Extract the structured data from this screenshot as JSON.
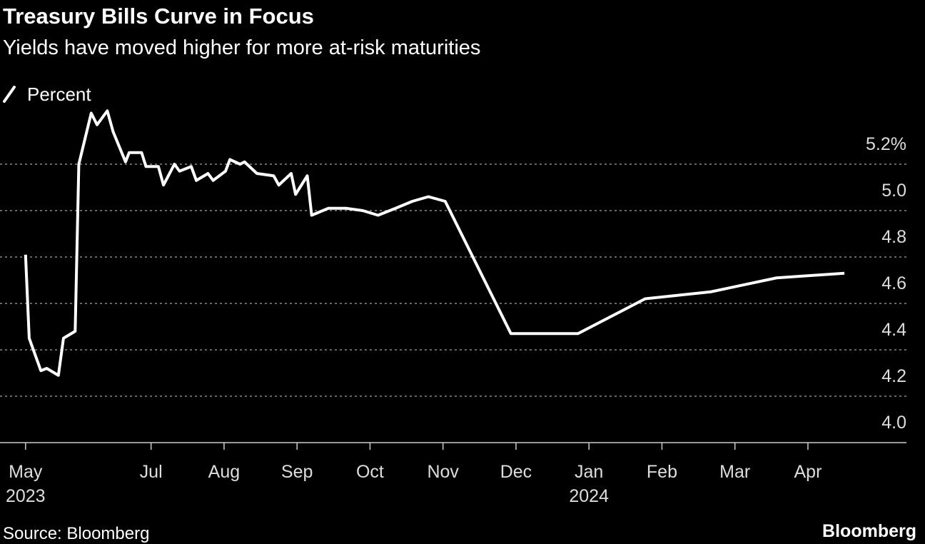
{
  "chart_data": {
    "type": "line",
    "title": "Treasury Bills Curve in Focus",
    "subtitle": "Yields have moved higher for more at-risk maturities",
    "source": "Source: Bloomberg",
    "brand": "Bloomberg",
    "background": "#000000",
    "grid": true,
    "legend": "top-left",
    "x": [
      5.28,
      5.33,
      5.49,
      5.57,
      5.73,
      5.8,
      5.96,
      6.01,
      6.18,
      6.26,
      6.4,
      6.48,
      6.65,
      6.7,
      6.87,
      6.93,
      7.1,
      7.17,
      7.32,
      7.39,
      7.55,
      7.62,
      7.78,
      7.85,
      8.02,
      8.08,
      8.22,
      8.28,
      8.45,
      8.68,
      8.75,
      8.92,
      8.98,
      9.14,
      9.2,
      9.43,
      9.67,
      9.9,
      10.11,
      10.35,
      10.58,
      10.8,
      11.03,
      11.93,
      12.85,
      13.77,
      14.67,
      15.57,
      16.5
    ],
    "series": [
      {
        "name": "Percent",
        "color": "#ffffff",
        "values": [
          4.81,
          4.45,
          4.31,
          4.32,
          4.29,
          4.45,
          4.48,
          5.2,
          5.42,
          5.37,
          5.43,
          5.34,
          5.21,
          5.25,
          5.25,
          5.19,
          5.19,
          5.11,
          5.2,
          5.17,
          5.19,
          5.13,
          5.16,
          5.13,
          5.17,
          5.22,
          5.2,
          5.21,
          5.16,
          5.15,
          5.11,
          5.16,
          5.07,
          5.15,
          4.98,
          5.01,
          5.01,
          5.0,
          4.98,
          5.01,
          5.04,
          5.06,
          5.04,
          4.47,
          4.47,
          4.62,
          4.65,
          4.71,
          4.73
        ]
      }
    ],
    "xlim": [
      4.93,
      17.35
    ],
    "xticks": [
      {
        "value": 5.28,
        "label": "May"
      },
      {
        "value": 7,
        "label": "Jul"
      },
      {
        "value": 8,
        "label": "Aug"
      },
      {
        "value": 9,
        "label": "Sep"
      },
      {
        "value": 10,
        "label": "Oct"
      },
      {
        "value": 11,
        "label": "Nov"
      },
      {
        "value": 12,
        "label": "Dec"
      },
      {
        "value": 13,
        "label": "Jan"
      },
      {
        "value": 14,
        "label": "Feb"
      },
      {
        "value": 15,
        "label": "Mar"
      },
      {
        "value": 16,
        "label": "Apr"
      }
    ],
    "x_sublabels": [
      {
        "value": 5.28,
        "label": "2023"
      },
      {
        "value": 13,
        "label": "2024"
      }
    ],
    "ylim": [
      4.0,
      5.45
    ],
    "yticks": [
      {
        "value": 4.0,
        "label": "4.0"
      },
      4.2,
      4.4,
      4.6,
      4.8,
      {
        "value": 5.0,
        "label": "5.0"
      },
      {
        "value": 5.2,
        "label": "5.2%"
      }
    ]
  }
}
